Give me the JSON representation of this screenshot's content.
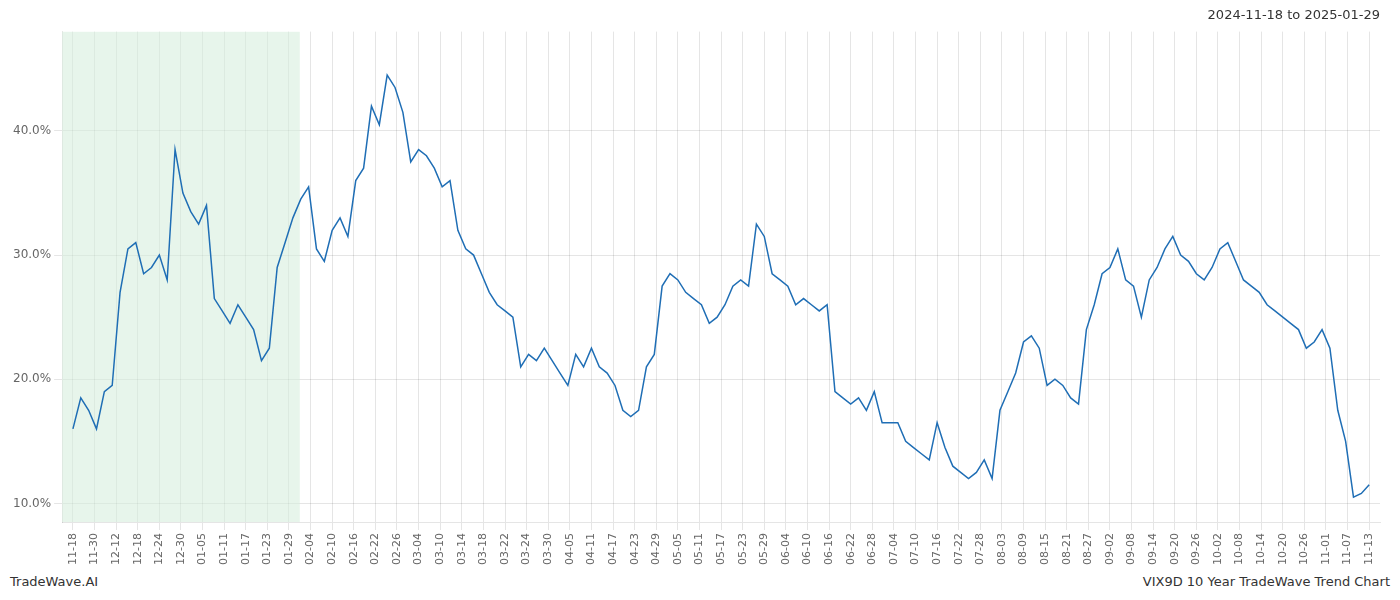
{
  "chart_data": {
    "type": "line",
    "title": "2024-11-18 to 2025-01-29",
    "annotations": [
      "TradeWave.AI",
      "VIX9D 10 Year TradeWave Trend Chart"
    ],
    "color": "#1f6eb5",
    "grid": true,
    "shade": {
      "xlim": [
        -0.5,
        10.5
      ],
      "color": "#d4edda"
    },
    "xlim": [
      -0.5,
      60.5
    ],
    "xticks": [
      {
        "value": 0,
        "label": "11-18"
      },
      {
        "value": 1,
        "label": "11-30"
      },
      {
        "value": 2,
        "label": "12-12"
      },
      {
        "value": 3,
        "label": "12-18"
      },
      {
        "value": 4,
        "label": "12-24"
      },
      {
        "value": 5,
        "label": "12-30"
      },
      {
        "value": 6,
        "label": "01-05"
      },
      {
        "value": 7,
        "label": "01-11"
      },
      {
        "value": 8,
        "label": "01-17"
      },
      {
        "value": 9,
        "label": "01-23"
      },
      {
        "value": 10,
        "label": "01-29"
      },
      {
        "value": 11,
        "label": "02-04"
      },
      {
        "value": 12,
        "label": "02-10"
      },
      {
        "value": 13,
        "label": "02-16"
      },
      {
        "value": 14,
        "label": "02-22"
      },
      {
        "value": 15,
        "label": "02-26"
      },
      {
        "value": 16,
        "label": "03-04"
      },
      {
        "value": 17,
        "label": "03-10"
      },
      {
        "value": 18,
        "label": "03-14"
      },
      {
        "value": 19,
        "label": "03-18"
      },
      {
        "value": 20,
        "label": "03-22"
      },
      {
        "value": 21,
        "label": "03-24"
      },
      {
        "value": 22,
        "label": "03-30"
      },
      {
        "value": 23,
        "label": "04-05"
      },
      {
        "value": 24,
        "label": "04-11"
      },
      {
        "value": 25,
        "label": "04-17"
      },
      {
        "value": 26,
        "label": "04-23"
      },
      {
        "value": 27,
        "label": "04-29"
      },
      {
        "value": 28,
        "label": "05-05"
      },
      {
        "value": 29,
        "label": "05-11"
      },
      {
        "value": 30,
        "label": "05-17"
      },
      {
        "value": 31,
        "label": "05-23"
      },
      {
        "value": 32,
        "label": "05-29"
      },
      {
        "value": 33,
        "label": "06-04"
      },
      {
        "value": 34,
        "label": "06-10"
      },
      {
        "value": 35,
        "label": "06-16"
      },
      {
        "value": 36,
        "label": "06-22"
      },
      {
        "value": 37,
        "label": "06-28"
      },
      {
        "value": 38,
        "label": "07-04"
      },
      {
        "value": 39,
        "label": "07-10"
      },
      {
        "value": 40,
        "label": "07-16"
      },
      {
        "value": 41,
        "label": "07-22"
      },
      {
        "value": 42,
        "label": "07-28"
      },
      {
        "value": 43,
        "label": "08-03"
      },
      {
        "value": 44,
        "label": "08-09"
      },
      {
        "value": 45,
        "label": "08-15"
      },
      {
        "value": 46,
        "label": "08-21"
      },
      {
        "value": 47,
        "label": "08-27"
      },
      {
        "value": 48,
        "label": "09-02"
      },
      {
        "value": 49,
        "label": "09-08"
      },
      {
        "value": 50,
        "label": "09-14"
      },
      {
        "value": 51,
        "label": "09-20"
      },
      {
        "value": 52,
        "label": "09-26"
      },
      {
        "value": 53,
        "label": "10-02"
      },
      {
        "value": 54,
        "label": "10-08"
      },
      {
        "value": 55,
        "label": "10-14"
      },
      {
        "value": 56,
        "label": "10-20"
      },
      {
        "value": 57,
        "label": "10-26"
      },
      {
        "value": 58,
        "label": "11-01"
      },
      {
        "value": 59,
        "label": "11-07"
      },
      {
        "value": 60,
        "label": "11-13"
      }
    ],
    "ylim": [
      8.5,
      48.0
    ],
    "yticks": [
      {
        "value": 10.0,
        "label": "10.0%"
      },
      {
        "value": 20.0,
        "label": "20.0%"
      },
      {
        "value": 30.0,
        "label": "30.0%"
      },
      {
        "value": 40.0,
        "label": "40.0%"
      }
    ],
    "x": [
      0,
      0.3636,
      0.7273,
      1.0909,
      1.4545,
      1.8182,
      2.1818,
      2.5455,
      2.9091,
      3.2727,
      3.6364,
      4,
      4.3636,
      4.7273,
      5.0909,
      5.4545,
      5.8182,
      6.1818,
      6.5455,
      6.9091,
      7.2727,
      7.6364,
      8,
      8.3636,
      8.7273,
      9.0909,
      9.4545,
      9.8182,
      10.1818,
      10.5455,
      10.9091,
      11.2727,
      11.6364,
      12,
      12.3636,
      12.7273,
      13.0909,
      13.4545,
      13.8182,
      14.1818,
      14.5455,
      14.9091,
      15.2727,
      15.6364,
      16,
      16.3636,
      16.7273,
      17.0909,
      17.4545,
      17.8182,
      18.1818,
      18.5455,
      18.9091,
      19.2727,
      19.6364,
      20,
      20.3636,
      20.7273,
      21.0909,
      21.4545,
      21.8182,
      22.1818,
      22.5455,
      22.9091,
      23.2727,
      23.6364,
      24,
      24.3636,
      24.7273,
      25.0909,
      25.4545,
      25.8182,
      26.1818,
      26.5455,
      26.9091,
      27.2727,
      27.6364,
      28,
      28.3636,
      28.7273,
      29.0909,
      29.4545,
      29.8182,
      30.1818,
      30.5455,
      30.9091,
      31.2727,
      31.6364,
      32,
      32.3636,
      32.7273,
      33.0909,
      33.4545,
      33.8182,
      34.1818,
      34.5455,
      34.9091,
      35.2727,
      35.6364,
      36,
      36.3636,
      36.7273,
      37.0909,
      37.4545,
      37.8182,
      38.1818,
      38.5455,
      38.9091,
      39.2727,
      39.6364,
      40,
      40.3636,
      40.7273,
      41.0909,
      41.4545,
      41.8182,
      42.1818,
      42.5455,
      42.9091,
      43.2727,
      43.6364,
      44,
      44.3636,
      44.7273,
      45.0909,
      45.4545,
      45.8182,
      46.1818,
      46.5455,
      46.9091,
      47.2727,
      47.6364,
      48,
      48.3636,
      48.7273,
      49.0909,
      49.4545,
      49.8182,
      50.1818,
      50.5455,
      50.9091,
      51.2727,
      51.6364,
      52,
      52.3636,
      52.7273,
      53.0909,
      53.4545,
      53.8182,
      54.1818,
      54.5455,
      54.9091,
      55.2727,
      55.6364,
      56,
      56.3636,
      56.7273,
      57.0909,
      57.4545,
      57.8182,
      58.1818,
      58.5455,
      58.9091,
      59.2727,
      59.6364,
      60
    ],
    "values": [
      16.0,
      18.5,
      17.5,
      16.0,
      19.0,
      19.5,
      27.0,
      30.5,
      31.0,
      28.5,
      29.0,
      30.0,
      28.0,
      38.5,
      35.0,
      33.5,
      32.5,
      34.0,
      26.5,
      25.5,
      24.5,
      26.0,
      25.0,
      24.0,
      21.5,
      22.5,
      29.0,
      31.0,
      33.0,
      34.5,
      35.5,
      30.5,
      29.5,
      32.0,
      33.0,
      31.5,
      36.0,
      37.0,
      42.0,
      40.5,
      44.5,
      43.5,
      41.5,
      37.5,
      38.5,
      38.0,
      37.0,
      35.5,
      36.0,
      32.0,
      30.5,
      30.0,
      28.5,
      27.0,
      26.0,
      25.5,
      25.0,
      21.0,
      22.0,
      21.5,
      22.5,
      21.5,
      20.5,
      19.5,
      22.0,
      21.0,
      22.5,
      21.0,
      20.5,
      19.5,
      17.5,
      17.0,
      17.5,
      21.0,
      22.0,
      27.5,
      28.5,
      28.0,
      27.0,
      26.5,
      26.0,
      24.5,
      25.0,
      26.0,
      27.5,
      28.0,
      27.5,
      32.5,
      31.5,
      28.5,
      28.0,
      27.5,
      26.0,
      26.5,
      26.0,
      25.5,
      26.0,
      19.0,
      18.5,
      18.0,
      18.5,
      17.5,
      19.0,
      16.5,
      16.5,
      16.5,
      15.0,
      14.5,
      14.0,
      13.5,
      16.5,
      14.5,
      13.0,
      12.5,
      12.0,
      12.5,
      13.5,
      12.0,
      17.5,
      19.0,
      20.5,
      23.0,
      23.5,
      22.5,
      19.5,
      20.0,
      19.5,
      18.5,
      18.0,
      24.0,
      26.0,
      28.5,
      29.0,
      30.5,
      28.0,
      27.5,
      25.0,
      28.0,
      29.0,
      30.5,
      31.5,
      30.0,
      29.5,
      28.5,
      28.0,
      29.0,
      30.5,
      31.0,
      29.5,
      28.0,
      27.5,
      27.0,
      26.0,
      25.5,
      25.0,
      24.5,
      24.0,
      22.5,
      23.0,
      24.0,
      22.5,
      17.5,
      15.0,
      10.5,
      10.8,
      11.5
    ]
  }
}
